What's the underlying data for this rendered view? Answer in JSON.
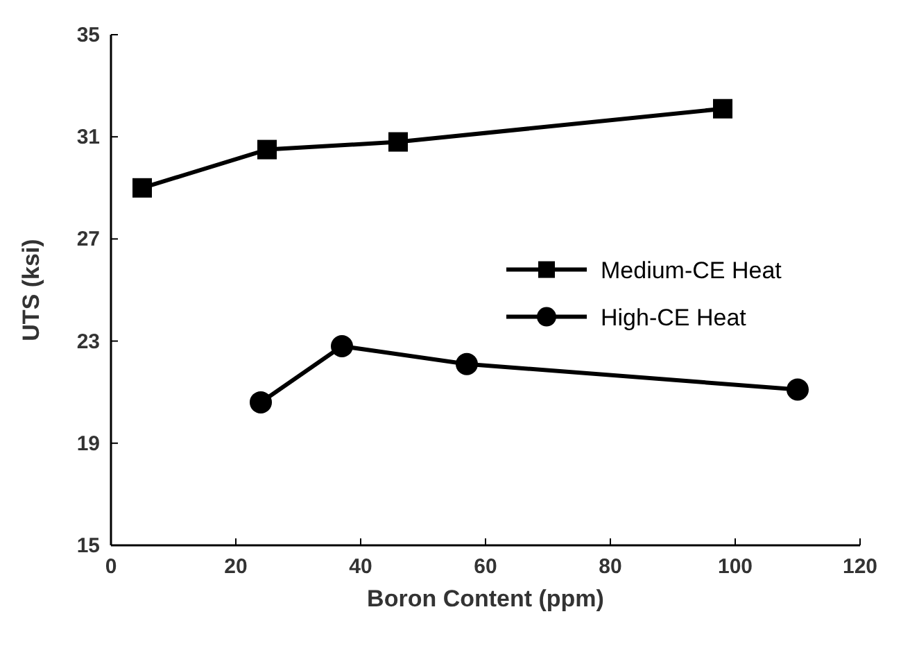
{
  "chart_data": {
    "type": "line",
    "xlabel": "Boron Content (ppm)",
    "ylabel": "UTS (ksi)",
    "xlim": [
      0,
      120
    ],
    "xticks": [
      0,
      20,
      40,
      60,
      80,
      100,
      120
    ],
    "ylim": [
      15,
      35
    ],
    "yticks": [
      15,
      19,
      23,
      27,
      31,
      35
    ],
    "grid": false,
    "legend": "right",
    "line_style": "solid",
    "series": [
      {
        "name": "Medium-CE Heat",
        "color": "#000000",
        "marker": "square",
        "x": [
          5,
          25,
          46,
          98
        ],
        "values": [
          29.0,
          30.5,
          30.8,
          32.1
        ]
      },
      {
        "name": "High-CE Heat",
        "color": "#000000",
        "marker": "circle",
        "x": [
          24,
          37,
          57,
          110
        ],
        "values": [
          20.6,
          22.8,
          22.1,
          21.1
        ]
      }
    ]
  }
}
